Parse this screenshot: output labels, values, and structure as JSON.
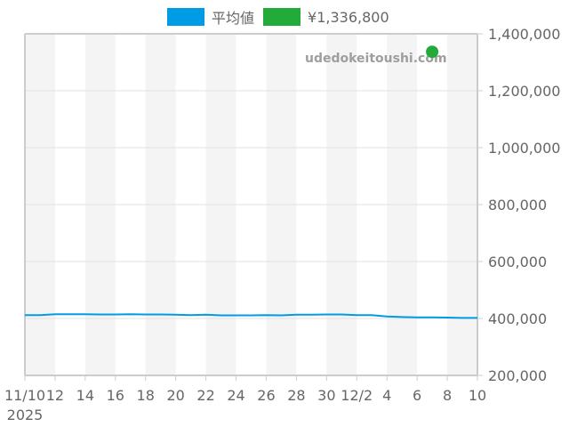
{
  "legend": {
    "items": [
      {
        "label": "平均値",
        "color": "#009be5"
      },
      {
        "label": "¥1,336,800",
        "color": "#22ab38"
      }
    ]
  },
  "watermark": "udedokeitoushi.com",
  "chart_data": {
    "type": "line",
    "title": "",
    "xlabel": "",
    "ylabel": "",
    "x_tick_labels": [
      "11/10\n2025",
      "12",
      "14",
      "16",
      "18",
      "20",
      "22",
      "24",
      "26",
      "28",
      "30",
      "12/2",
      "4",
      "6",
      "8",
      "10"
    ],
    "y_tick_labels": [
      "200,000",
      "400,000",
      "600,000",
      "800,000",
      "1,000,000",
      "1,200,000",
      "1,400,000"
    ],
    "ylim": [
      200000,
      1400000
    ],
    "xrange": [
      "2025-11-10",
      "2025-12-10"
    ],
    "grid": true,
    "legend_position": "top",
    "y_axis_position": "right",
    "series": [
      {
        "name": "平均値",
        "color": "#009be5",
        "x": [
          "11/10",
          "11/11",
          "11/12",
          "11/13",
          "11/14",
          "11/15",
          "11/16",
          "11/17",
          "11/18",
          "11/19",
          "11/20",
          "11/21",
          "11/22",
          "11/23",
          "11/24",
          "11/25",
          "11/26",
          "11/27",
          "11/28",
          "11/29",
          "11/30",
          "12/1",
          "12/2",
          "12/3",
          "12/4",
          "12/5",
          "12/6",
          "12/7",
          "12/8",
          "12/9",
          "12/10"
        ],
        "values": [
          412000,
          412000,
          415000,
          415000,
          415000,
          414000,
          414000,
          415000,
          414000,
          414000,
          413000,
          412000,
          413000,
          411000,
          411000,
          411000,
          412000,
          411000,
          413000,
          413000,
          414000,
          414000,
          412000,
          412000,
          407000,
          405000,
          404000,
          404000,
          403000,
          402000,
          402000
        ]
      },
      {
        "name": "¥1,336,800",
        "color": "#22ab38",
        "type": "scatter",
        "x": [
          "12/7"
        ],
        "values": [
          1336800
        ]
      }
    ]
  }
}
